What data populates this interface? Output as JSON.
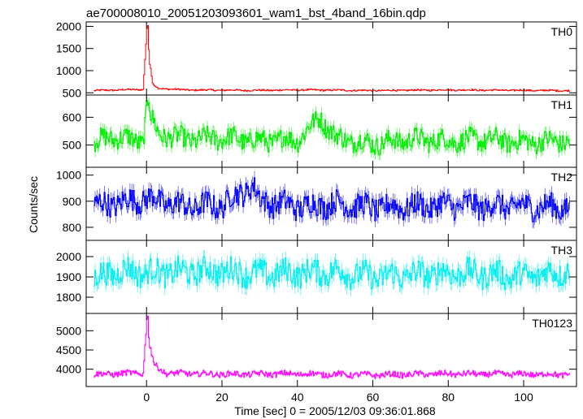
{
  "chart_data": {
    "type": "line",
    "title": "ae700008010_20051203093601_wam1_bst_4band_16bin.qdp",
    "xlabel": "Time [sec] 0 = 2005/12/03 09:36:01.868",
    "ylabel": "Counts/sec",
    "xlim": [
      -16,
      114
    ],
    "x_ticks": [
      "0",
      "20",
      "40",
      "60",
      "80",
      "100"
    ],
    "x_tick_values": [
      0,
      20,
      40,
      60,
      80,
      100
    ],
    "grid": false,
    "panels": [
      {
        "name": "TH0",
        "color": "#ff0000",
        "ylim": [
          450,
          2100
        ],
        "y_tick_values": [
          500,
          1000,
          1500,
          2000
        ],
        "y_ticks": [
          "500",
          "1000",
          "1500",
          "2000"
        ],
        "baseline": 560,
        "noise": 18,
        "burst_peak": 2050,
        "values": [
          [
            -15,
            545
          ],
          [
            -10,
            560
          ],
          [
            -5,
            570
          ],
          [
            -1,
            575
          ],
          [
            0,
            1950
          ],
          [
            0.3,
            2030
          ],
          [
            0.6,
            1200
          ],
          [
            1,
            1050
          ],
          [
            1.5,
            700
          ],
          [
            3,
            600
          ],
          [
            10,
            565
          ],
          [
            20,
            560
          ],
          [
            30,
            555
          ],
          [
            40,
            565
          ],
          [
            50,
            560
          ],
          [
            60,
            550
          ],
          [
            70,
            558
          ],
          [
            80,
            565
          ],
          [
            90,
            560
          ],
          [
            100,
            555
          ],
          [
            112,
            550
          ]
        ]
      },
      {
        "name": "TH1",
        "color": "#00ee00",
        "ylim": [
          420,
          680
        ],
        "y_tick_values": [
          500,
          600
        ],
        "y_ticks": [
          "500",
          "600"
        ],
        "baseline": 520,
        "noise": 35,
        "burst_peak": 670,
        "values": [
          [
            -15,
            500
          ],
          [
            -10,
            530
          ],
          [
            -5,
            520
          ],
          [
            -1,
            515
          ],
          [
            0,
            640
          ],
          [
            0.5,
            670
          ],
          [
            1,
            600
          ],
          [
            3,
            540
          ],
          [
            10,
            520
          ],
          [
            20,
            525
          ],
          [
            30,
            515
          ],
          [
            40,
            520
          ],
          [
            46,
            600
          ],
          [
            50,
            525
          ],
          [
            60,
            505
          ],
          [
            70,
            520
          ],
          [
            80,
            515
          ],
          [
            90,
            520
          ],
          [
            100,
            510
          ],
          [
            112,
            515
          ]
        ]
      },
      {
        "name": "TH2",
        "color": "#0000ff",
        "ylim": [
          750,
          1030
        ],
        "y_tick_values": [
          800,
          900,
          1000
        ],
        "y_ticks": [
          "800",
          "900",
          "1000"
        ],
        "baseline": 880,
        "noise": 45,
        "burst_peak": 960,
        "values": [
          [
            -15,
            880
          ],
          [
            -10,
            890
          ],
          [
            -5,
            900
          ],
          [
            0,
            910
          ],
          [
            10,
            880
          ],
          [
            20,
            885
          ],
          [
            28,
            960
          ],
          [
            30,
            900
          ],
          [
            40,
            880
          ],
          [
            50,
            890
          ],
          [
            60,
            875
          ],
          [
            70,
            880
          ],
          [
            80,
            885
          ],
          [
            90,
            880
          ],
          [
            100,
            880
          ],
          [
            112,
            875
          ]
        ]
      },
      {
        "name": "TH3",
        "color": "#00eeee",
        "ylim": [
          1720,
          2080
        ],
        "y_tick_values": [
          1800,
          1900,
          2000
        ],
        "y_ticks": [
          "1800",
          "1900",
          "2000"
        ],
        "baseline": 1920,
        "noise": 60,
        "burst_peak": 1960,
        "values": [
          [
            -15,
            1880
          ],
          [
            -10,
            1920
          ],
          [
            -5,
            1930
          ],
          [
            0,
            1920
          ],
          [
            10,
            1925
          ],
          [
            20,
            1930
          ],
          [
            30,
            1915
          ],
          [
            40,
            1920
          ],
          [
            50,
            1925
          ],
          [
            60,
            1900
          ],
          [
            70,
            1910
          ],
          [
            80,
            1920
          ],
          [
            90,
            1915
          ],
          [
            100,
            1900
          ],
          [
            112,
            1930
          ]
        ]
      },
      {
        "name": "TH0123",
        "color": "#ff00ff",
        "ylim": [
          3550,
          5450
        ],
        "y_tick_values": [
          4000,
          4500,
          5000
        ],
        "y_ticks": [
          "4000",
          "4500",
          "5000"
        ],
        "baseline": 3870,
        "noise": 70,
        "burst_peak": 5400,
        "values": [
          [
            -15,
            3850
          ],
          [
            -10,
            3880
          ],
          [
            -5,
            3890
          ],
          [
            -1,
            3900
          ],
          [
            0,
            5300
          ],
          [
            0.3,
            5400
          ],
          [
            0.6,
            4600
          ],
          [
            1,
            4500
          ],
          [
            2,
            4100
          ],
          [
            5,
            3900
          ],
          [
            20,
            3870
          ],
          [
            40,
            3880
          ],
          [
            60,
            3850
          ],
          [
            80,
            3880
          ],
          [
            100,
            3870
          ],
          [
            112,
            3860
          ]
        ]
      }
    ]
  }
}
